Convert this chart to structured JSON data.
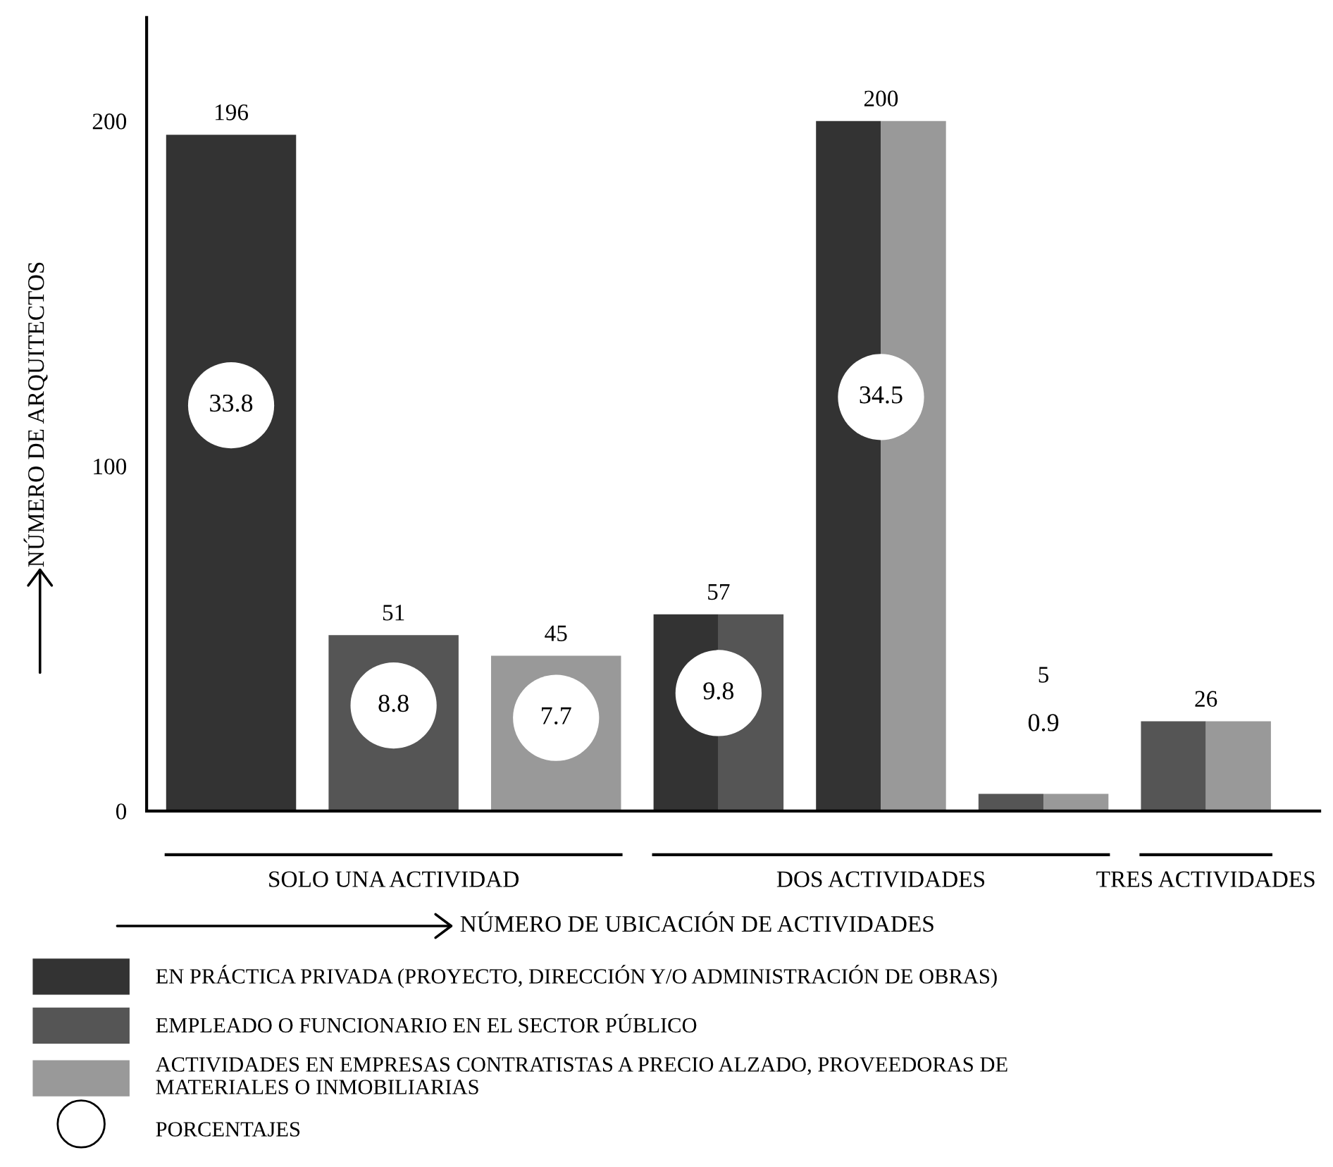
{
  "chart_data": {
    "type": "bar",
    "categories": [
      null,
      "SOLO UNA ACTIVIDAD",
      null,
      null,
      "DOS ACTIVIDADES",
      null,
      "TRES ACTIVIDADES"
    ],
    "series": [
      {
        "name": "EN PRÁCTICA PRIVADA (PROYECTO, DIRECCIÓN Y/O ADMINISTRACIÓN DE OBRAS)",
        "color": "#333333",
        "values": [
          196,
          null,
          null,
          57,
          200,
          null,
          null
        ]
      },
      {
        "name": "EMPLEADO O FUNCIONARIO EN EL SECTOR PÚBLICO",
        "color": "#555555",
        "values": [
          null,
          51,
          null,
          57,
          null,
          5,
          26
        ]
      },
      {
        "name": "ACTIVIDADES EN EMPRESAS CONTRATISTAS A PRECIO ALZADO, PROVEEDORAS DE\nMATERIALES O INMOBILIARIAS",
        "color": "#999999",
        "values": [
          null,
          null,
          45,
          null,
          200,
          5,
          26
        ]
      }
    ],
    "value_labels": [
      "196",
      "51",
      "45",
      "57",
      "200",
      "5",
      "26"
    ],
    "annotations": [
      "33.8",
      "8.8",
      "7.7",
      "9.8",
      "34.5",
      "0.9",
      "PORCENTAJES"
    ],
    "xlabel": "NÚMERO DE UBICACIÓN DE ACTIVIDADES",
    "ylabel": "NÚMERO DE ARQUITECTOS",
    "ylim": [
      0,
      230
    ],
    "yticks": [
      0,
      100,
      200
    ],
    "grid": false,
    "legend": "bottom"
  }
}
